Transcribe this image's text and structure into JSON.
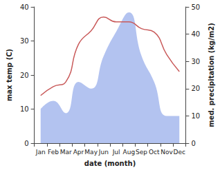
{
  "chart_data": {
    "type": "line",
    "x_label": "date (month)",
    "y_label": "max temp (C)",
    "y2_label": "med. precipitation (kg/m2)",
    "categories": [
      "Jan",
      "Feb",
      "Mar",
      "Apr",
      "May",
      "Jun",
      "Jul",
      "Aug",
      "Sep",
      "Oct",
      "Nov",
      "Dec"
    ],
    "series": [
      {
        "name": "med. precipitation",
        "type": "area",
        "axis": "y2",
        "color": "#b3c3f0",
        "values": [
          12.5,
          15.5,
          11,
          22.5,
          20,
          32,
          41,
          48,
          32,
          22.5,
          10,
          10
        ]
      },
      {
        "name": "max temp",
        "type": "line",
        "color": "#c95a5a",
        "marker": "none",
        "values": [
          14,
          16.6,
          18,
          29,
          33,
          37,
          35.6,
          35.6,
          33.6,
          32.6,
          26,
          21
        ]
      }
    ],
    "ylim": [
      0,
      40
    ],
    "yticks": [
      0,
      10,
      20,
      30,
      40
    ],
    "y2lim": [
      0,
      50
    ],
    "y2ticks": [
      0,
      10,
      20,
      30,
      40,
      50
    ],
    "grid": false
  }
}
